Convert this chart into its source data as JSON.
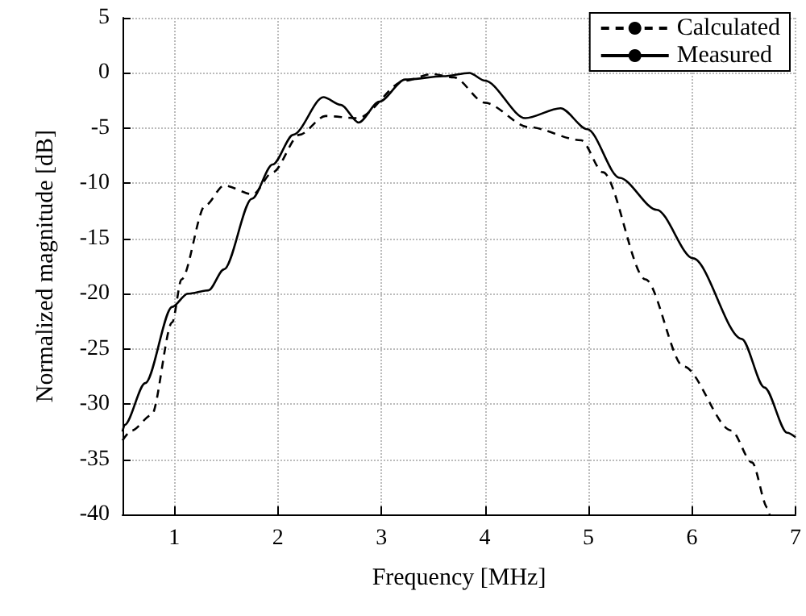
{
  "chart_data": {
    "type": "line",
    "xlabel": "Frequency [MHz]",
    "ylabel": "Normalized magnitude [dB]",
    "xlim": [
      0.5,
      7
    ],
    "xticks": [
      1,
      2,
      3,
      4,
      5,
      6,
      7
    ],
    "ylim": [
      -40,
      5
    ],
    "yticks": [
      5,
      0,
      -5,
      -10,
      -15,
      -20,
      -25,
      -30,
      -35,
      -40
    ],
    "grid": true,
    "legend": "top right",
    "series": [
      {
        "name": "Calculated",
        "color": "#000000",
        "line_style": "dashed",
        "x": [
          0.5,
          0.59,
          0.78,
          0.98,
          1.07,
          1.3,
          1.48,
          1.76,
          1.95,
          2.21,
          2.46,
          2.77,
          3.23,
          3.49,
          3.7,
          4.0,
          4.42,
          4.93,
          5.14,
          5.55,
          5.92,
          6.38,
          6.58,
          6.73,
          6.75
        ],
        "values": [
          -33.3,
          -32.4,
          -31,
          -22.6,
          -18.7,
          -12,
          -10.2,
          -11,
          -9,
          -5.6,
          -3.9,
          -4.1,
          -0.7,
          -0.1,
          -0.4,
          -2.7,
          -4.9,
          -6.1,
          -9,
          -18.7,
          -26.6,
          -32.4,
          -35.3,
          -39.4,
          -40
        ]
      },
      {
        "name": "Measured",
        "color": "#000000",
        "line_style": "solid",
        "x": [
          0.5,
          0.52,
          0.72,
          0.98,
          1.13,
          1.33,
          1.48,
          1.75,
          1.95,
          2.15,
          2.44,
          2.61,
          2.78,
          2.98,
          3.23,
          3.6,
          3.85,
          4.0,
          4.39,
          4.73,
          4.99,
          5.3,
          5.66,
          6.01,
          6.48,
          6.7,
          6.92,
          7
        ],
        "values": [
          -32.5,
          -31.9,
          -28.1,
          -21.2,
          -20,
          -19.7,
          -17.8,
          -11.4,
          -8.3,
          -5.6,
          -2.2,
          -2.9,
          -4.5,
          -2.6,
          -0.6,
          -0.3,
          0,
          -0.7,
          -4.1,
          -3.2,
          -5.1,
          -9.5,
          -12.4,
          -16.8,
          -24.1,
          -28.5,
          -32.6,
          -33
        ]
      }
    ]
  }
}
